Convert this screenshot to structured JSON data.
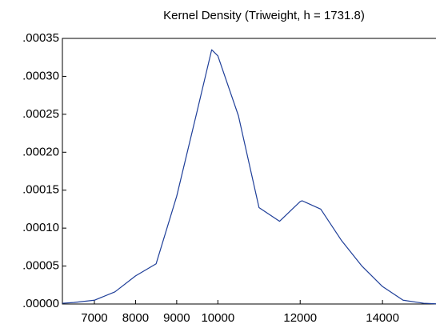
{
  "chart_data": {
    "type": "line",
    "title": "Kernel Density (Triweight, h =  1731.8)",
    "x": [
      6223,
      6500,
      7000,
      7500,
      8000,
      8500,
      9000,
      9500,
      9850,
      10000,
      10500,
      11000,
      11500,
      12000,
      12050,
      12500,
      13000,
      13500,
      14000,
      14500,
      15000,
      15300
    ],
    "series": [
      {
        "color": "#1f3f99",
        "values": [
          1e-06,
          2e-06,
          5e-06,
          1.6e-05,
          3.7e-05,
          5.3e-05,
          0.000142,
          0.000255,
          0.000335,
          0.000327,
          0.000248,
          0.000127,
          0.000109,
          0.000135,
          0.000136,
          0.000125,
          8.4e-05,
          5e-05,
          2.3e-05,
          5e-06,
          1e-06,
          3e-07
        ]
      }
    ],
    "xlim": [
      6223,
      15300
    ],
    "xticks": [
      7000,
      8000,
      9000,
      10000,
      12000,
      14000
    ],
    "ylim": [
      0,
      0.00035
    ],
    "yticks": [
      {
        "value": 0,
        "label": ".00000"
      },
      {
        "value": 5e-05,
        "label": ".00005"
      },
      {
        "value": 0.0001,
        "label": ".00010"
      },
      {
        "value": 0.00015,
        "label": ".00015"
      },
      {
        "value": 0.0002,
        "label": ".00020"
      },
      {
        "value": 0.00025,
        "label": ".00025"
      },
      {
        "value": 0.0003,
        "label": ".00030"
      },
      {
        "value": 0.00035,
        "label": ".00035"
      }
    ]
  }
}
